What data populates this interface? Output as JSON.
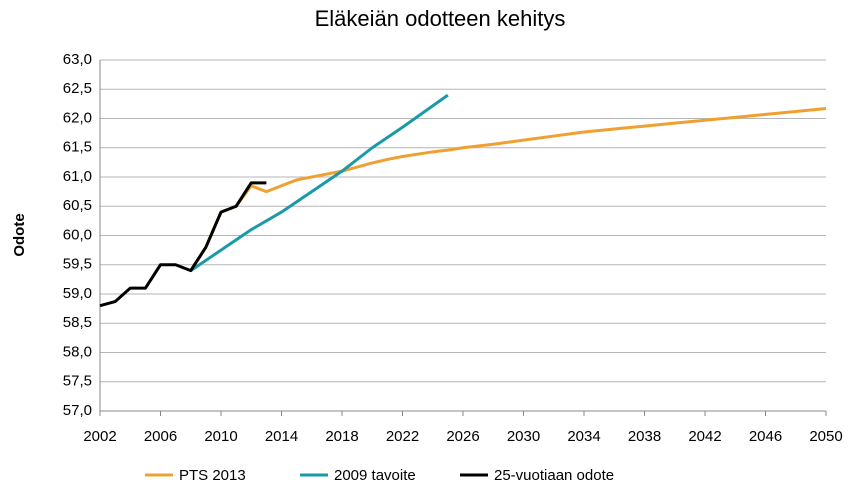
{
  "chart_data": {
    "type": "line",
    "title": "Eläkeiän odotteen kehitys",
    "ylabel": "Odote",
    "xlim": [
      2002,
      2050
    ],
    "xticks": [
      2002,
      2006,
      2010,
      2014,
      2018,
      2022,
      2026,
      2030,
      2034,
      2038,
      2042,
      2046,
      2050
    ],
    "ylim": [
      57,
      63
    ],
    "yticks": [
      {
        "value": 57,
        "label": "57,0"
      },
      {
        "value": 57.5,
        "label": "57,5"
      },
      {
        "value": 58,
        "label": "58,0"
      },
      {
        "value": 58.5,
        "label": "58,5"
      },
      {
        "value": 59,
        "label": "59,0"
      },
      {
        "value": 59.5,
        "label": "59,5"
      },
      {
        "value": 60,
        "label": "60,0"
      },
      {
        "value": 60.5,
        "label": "60,5"
      },
      {
        "value": 61,
        "label": "61,0"
      },
      {
        "value": 61.5,
        "label": "61,5"
      },
      {
        "value": 62,
        "label": "62,0"
      },
      {
        "value": 62.5,
        "label": "62,5"
      },
      {
        "value": 63,
        "label": "63,0"
      }
    ],
    "grid": true,
    "legend": "bottom",
    "series": [
      {
        "name": "PTS 2013",
        "color": "#f0a030",
        "x": [
          2008,
          2009,
          2010,
          2011,
          2012,
          2013,
          2014,
          2015,
          2016,
          2017,
          2018,
          2019,
          2020,
          2021,
          2022,
          2023,
          2024,
          2025,
          2026,
          2028,
          2030,
          2032,
          2034,
          2036,
          2038,
          2040,
          2042,
          2044,
          2046,
          2048,
          2050
        ],
        "values": [
          59.4,
          59.8,
          60.4,
          60.5,
          60.85,
          60.75,
          60.85,
          60.95,
          61.0,
          61.05,
          61.1,
          61.17,
          61.24,
          61.3,
          61.35,
          61.39,
          61.43,
          61.46,
          61.5,
          61.56,
          61.63,
          61.7,
          61.77,
          61.82,
          61.87,
          61.92,
          61.97,
          62.02,
          62.07,
          62.12,
          62.17
        ]
      },
      {
        "name": "2009 tavoite",
        "color": "#1a9aa8",
        "x": [
          2008,
          2010,
          2012,
          2014,
          2016,
          2018,
          2020,
          2022,
          2025
        ],
        "values": [
          59.4,
          59.75,
          60.1,
          60.4,
          60.75,
          61.1,
          61.5,
          61.85,
          62.4
        ]
      },
      {
        "name": "25-vuotiaan odote",
        "color": "#000000",
        "x": [
          2002,
          2003,
          2004,
          2005,
          2006,
          2007,
          2008,
          2009,
          2010,
          2011,
          2012,
          2013
        ],
        "values": [
          58.8,
          58.87,
          59.1,
          59.1,
          59.5,
          59.5,
          59.4,
          59.8,
          60.4,
          60.5,
          60.9,
          60.9
        ]
      }
    ]
  }
}
